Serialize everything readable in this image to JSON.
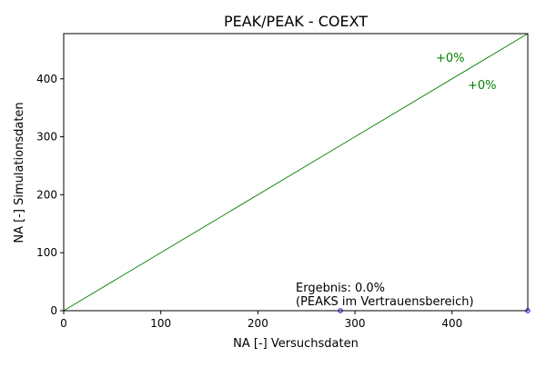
{
  "chart_data": {
    "type": "scatter",
    "title": "PEAK/PEAK - COEXT",
    "xlabel": "NA [-] Versuchsdaten",
    "ylabel": "NA [-] Simulationsdaten",
    "xlim": [
      0,
      478
    ],
    "ylim": [
      0,
      478
    ],
    "x_ticks": [
      0,
      100,
      200,
      300,
      400
    ],
    "y_ticks": [
      0,
      100,
      200,
      300,
      400
    ],
    "grid": false,
    "series": [
      {
        "values": [
          {
            "x": 285,
            "y": 0
          },
          {
            "x": 478,
            "y": 0
          }
        ]
      }
    ],
    "reference_lines": [
      {
        "label": "+0%",
        "x": [
          0,
          478
        ],
        "y": [
          0,
          478
        ]
      }
    ],
    "annotations": {
      "upper_band_label": "+0%",
      "lower_band_label": "+0%",
      "result_line1": "Ergebnis: 0.0%",
      "result_line2": "(PEAKS im Vertrauensbereich)"
    },
    "colors": {
      "reference_line": "#008000",
      "markers": "#0000ff",
      "axes": "#000000"
    }
  }
}
